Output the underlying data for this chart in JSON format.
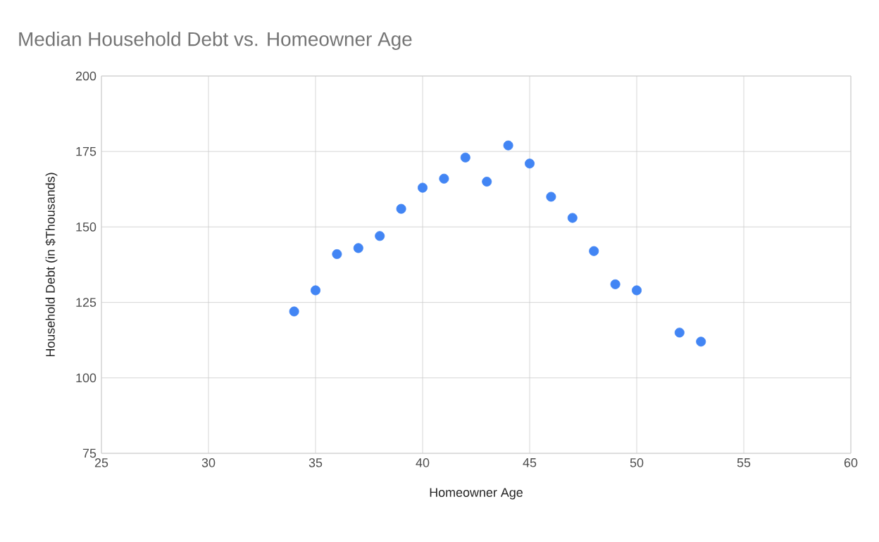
{
  "chart_data": {
    "type": "scatter",
    "title": "Median Household Debt vs.  Homeowner Age",
    "xlabel": "Homeowner Age",
    "ylabel": "Household Debt (in $Thousands)",
    "x": [
      34,
      35,
      36,
      37,
      38,
      39,
      40,
      41,
      42,
      43,
      44,
      45,
      46,
      47,
      48,
      49,
      50,
      52,
      53
    ],
    "values": [
      122,
      129,
      141,
      143,
      147,
      156,
      163,
      166,
      173,
      165,
      177,
      171,
      160,
      153,
      142,
      131,
      129,
      115,
      112
    ],
    "color": "#4285f4",
    "marker": "circle",
    "xlim": [
      25,
      60
    ],
    "xticks": [
      25,
      30,
      35,
      40,
      45,
      50,
      55,
      60
    ],
    "ylim": [
      75,
      200
    ],
    "yticks": [
      75,
      100,
      125,
      150,
      175,
      200
    ],
    "grid": true
  }
}
